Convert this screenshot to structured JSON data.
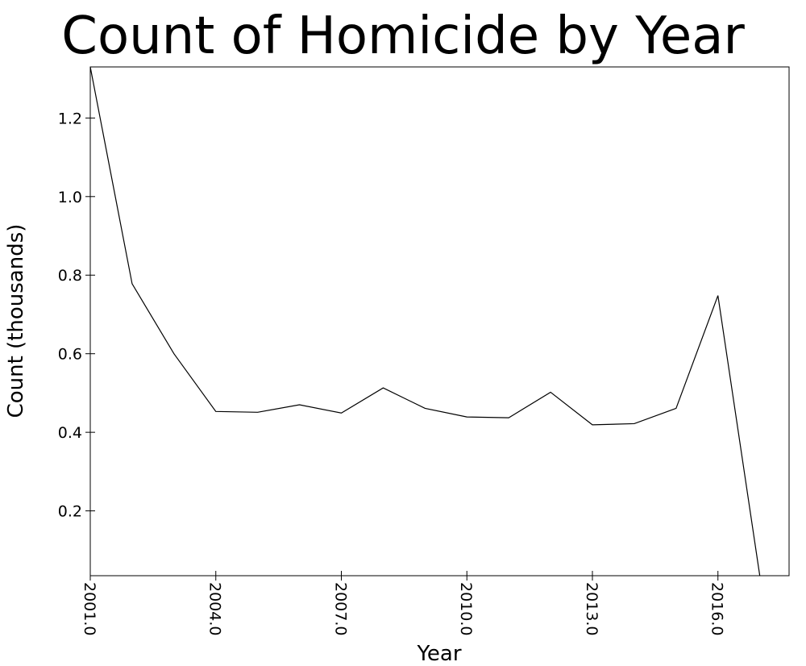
{
  "chart_data": {
    "type": "line",
    "title": "Count of Homicide by Year",
    "xlabel": "Year",
    "ylabel": "Count (thousands)",
    "xlim": [
      2001.0,
      2017.7
    ],
    "ylim": [
      0.035,
      1.33
    ],
    "x_ticks": [
      2001.0,
      2004.0,
      2007.0,
      2010.0,
      2013.0,
      2016.0
    ],
    "x_tick_labels": [
      "2001.0",
      "2004.0",
      "2007.0",
      "2010.0",
      "2013.0",
      "2016.0"
    ],
    "y_ticks": [
      0.2,
      0.4,
      0.6,
      0.8,
      1.0,
      1.2
    ],
    "y_tick_labels": [
      "0.2",
      "0.4",
      "0.6",
      "0.8",
      "1.0",
      "1.2"
    ],
    "grid": false,
    "legend": false,
    "series": [
      {
        "color": "#000000",
        "x": [
          2001.0,
          2002.0,
          2003.0,
          2004.0,
          2005.0,
          2006.0,
          2007.0,
          2008.0,
          2009.0,
          2010.0,
          2011.0,
          2012.0,
          2013.0,
          2014.0,
          2015.0,
          2016.0,
          2017.0
        ],
        "y": [
          1.33,
          0.778,
          0.6,
          0.453,
          0.451,
          0.47,
          0.449,
          0.513,
          0.461,
          0.439,
          0.437,
          0.502,
          0.419,
          0.422,
          0.461,
          0.748,
          0.035
        ]
      }
    ]
  }
}
